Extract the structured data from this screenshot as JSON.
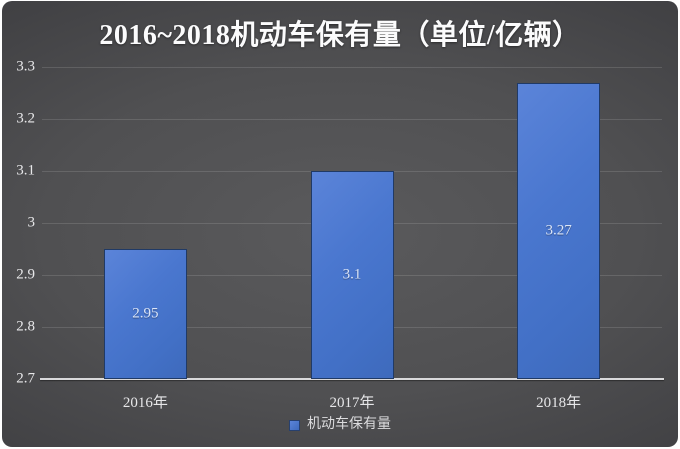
{
  "page": {
    "frame_color": "#ffffff",
    "card_background_center": "#5a5a5c",
    "card_background_edge": "#2b2b2e"
  },
  "chart_data": {
    "type": "bar",
    "title": "2016~2018机动车保有量（单位/亿辆）",
    "categories": [
      "2016年",
      "2017年",
      "2018年"
    ],
    "series": [
      {
        "name": "机动车保有量",
        "values": [
          2.95,
          3.1,
          3.27
        ]
      }
    ],
    "data_labels": [
      "2.95",
      "3.1",
      "3.27"
    ],
    "xlabel": "",
    "ylabel": "",
    "ylim": [
      2.7,
      3.3
    ],
    "y_tick_labels": [
      "3.3",
      "3.2",
      "3.1",
      "3",
      "2.9",
      "2.8",
      "2.7"
    ],
    "grid": true,
    "legend_position": "bottom",
    "colors": {
      "bar": "#4573c9",
      "bar_border": "#203a66",
      "bar_value_label": "#dce6f8",
      "axis_text": "#e7e7e9",
      "baseline": "#d9d9db",
      "title_text": "#fbfbfc"
    }
  },
  "legend": {
    "label": "机动车保有量"
  }
}
